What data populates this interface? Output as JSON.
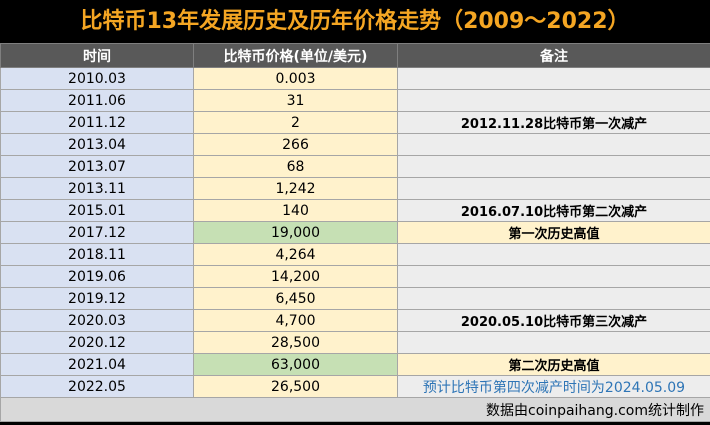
{
  "title": "比特币13年发展历史及历年价格走势（2009～2022）",
  "headers": [
    "时间",
    "比特币价格(单位/美元)",
    "备注"
  ],
  "rows": [
    {
      "time": "2010.03",
      "price": "0.003",
      "note": ""
    },
    {
      "time": "2011.06",
      "price": "31",
      "note": ""
    },
    {
      "time": "2011.12",
      "price": "2",
      "note": "2012.11.28比特币第一次减产"
    },
    {
      "time": "2013.04",
      "price": "266",
      "note": ""
    },
    {
      "time": "2013.07",
      "price": "68",
      "note": ""
    },
    {
      "time": "2013.11",
      "price": "1,242",
      "note": ""
    },
    {
      "time": "2015.01",
      "price": "140",
      "note": "2016.07.10比特币第二次减产"
    },
    {
      "time": "2017.12",
      "price": "19,000",
      "note": "第一次历史高值"
    },
    {
      "time": "2018.11",
      "price": "4,264",
      "note": ""
    },
    {
      "time": "2019.06",
      "price": "14,200",
      "note": ""
    },
    {
      "time": "2019.12",
      "price": "6,450",
      "note": ""
    },
    {
      "time": "2020.03",
      "price": "4,700",
      "note": "2020.05.10比特币第三次减产"
    },
    {
      "time": "2020.12",
      "price": "28,500",
      "note": ""
    },
    {
      "time": "2021.04",
      "price": "63,000",
      "note": "第二次历史高值"
    },
    {
      "time": "2022.05",
      "price": "26,500",
      "note": "预计比特币第四次减产时间为2024.05.09"
    }
  ],
  "footer": "数据由coinpaihang.com统计制作",
  "colors": {
    "title": "#f5a623",
    "header_bg": "#595959",
    "time_bg": "#d9e1f2",
    "price_bg": "#fff2cc",
    "highlight_green": "#c6e0b4",
    "note_bg": "#ededed",
    "note_blue_text": "#2e75b6"
  }
}
